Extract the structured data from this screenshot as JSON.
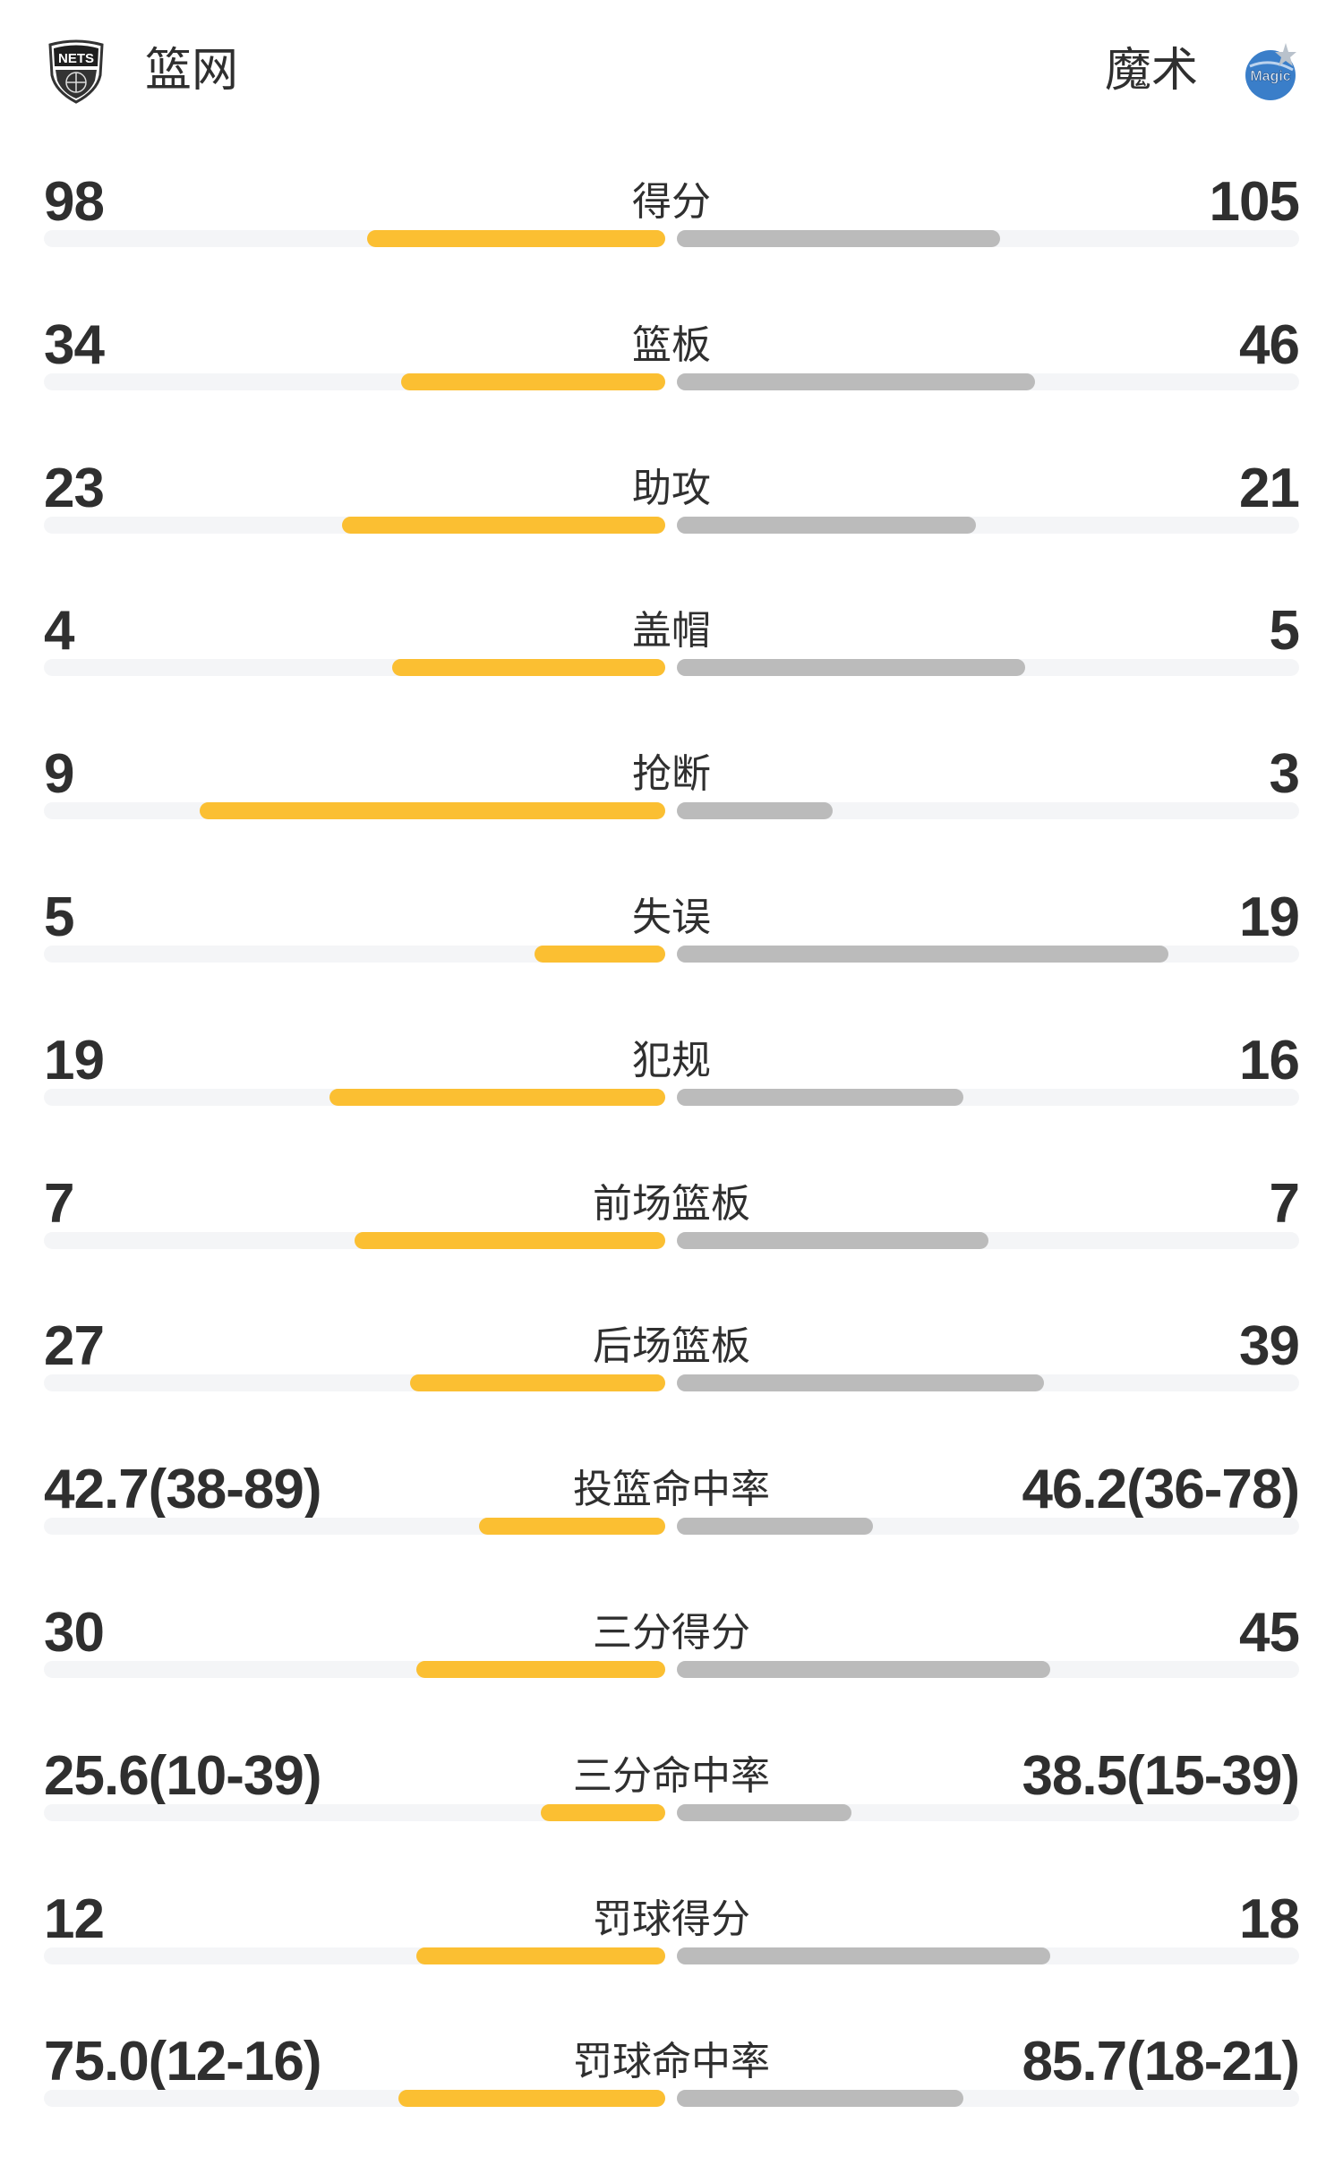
{
  "header": {
    "home_team": "篮网",
    "away_team": "魔术",
    "home_logo": "nets-logo-icon",
    "away_logo": "magic-logo-icon"
  },
  "colors": {
    "home_bar": "#fbbf32",
    "away_bar": "#bbbbbb",
    "track": "#f4f5f7"
  },
  "stats": [
    {
      "label": "得分",
      "home": "98",
      "away": "105",
      "home_fill": 0.48,
      "away_fill": 0.52
    },
    {
      "label": "篮板",
      "home": "34",
      "away": "46",
      "home_fill": 0.425,
      "away_fill": 0.575
    },
    {
      "label": "助攻",
      "home": "23",
      "away": "21",
      "home_fill": 0.52,
      "away_fill": 0.48
    },
    {
      "label": "盖帽",
      "home": "4",
      "away": "5",
      "home_fill": 0.44,
      "away_fill": 0.56
    },
    {
      "label": "抢断",
      "home": "9",
      "away": "3",
      "home_fill": 0.75,
      "away_fill": 0.25
    },
    {
      "label": "失误",
      "home": "5",
      "away": "19",
      "home_fill": 0.21,
      "away_fill": 0.79
    },
    {
      "label": "犯规",
      "home": "19",
      "away": "16",
      "home_fill": 0.54,
      "away_fill": 0.46
    },
    {
      "label": "前场篮板",
      "home": "7",
      "away": "7",
      "home_fill": 0.5,
      "away_fill": 0.5
    },
    {
      "label": "后场篮板",
      "home": "27",
      "away": "39",
      "home_fill": 0.41,
      "away_fill": 0.59
    },
    {
      "label": "投篮命中率",
      "home": "42.7(38-89)",
      "away": "46.2(36-78)",
      "home_fill": 0.3,
      "away_fill": 0.315
    },
    {
      "label": "三分得分",
      "home": "30",
      "away": "45",
      "home_fill": 0.4,
      "away_fill": 0.6
    },
    {
      "label": "三分命中率",
      "home": "25.6(10-39)",
      "away": "38.5(15-39)",
      "home_fill": 0.2,
      "away_fill": 0.28
    },
    {
      "label": "罚球得分",
      "home": "12",
      "away": "18",
      "home_fill": 0.4,
      "away_fill": 0.6
    },
    {
      "label": "罚球命中率",
      "home": "75.0(12-16)",
      "away": "85.7(18-21)",
      "home_fill": 0.43,
      "away_fill": 0.46
    }
  ]
}
